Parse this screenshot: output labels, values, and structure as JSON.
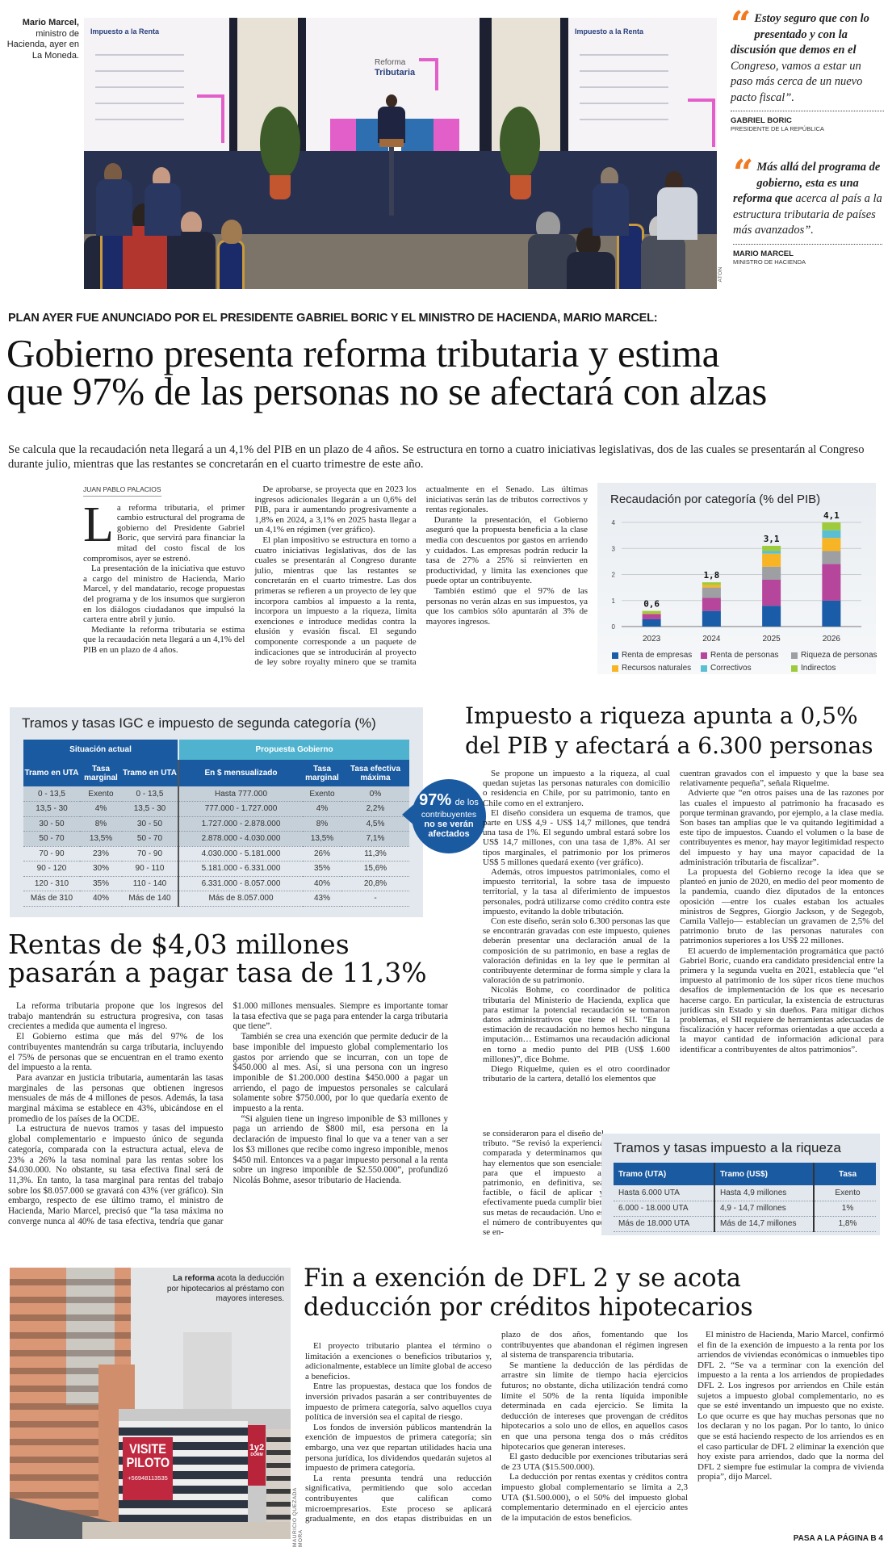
{
  "photo_top": {
    "caption_bold": "Mario Marcel,",
    "caption": "ministro de Hacienda, ayer en La Moneda.",
    "credit": "ATON",
    "screen_left_title": "Impuesto a la Renta",
    "screen_center_title": "Reforma",
    "screen_center_title2": "Tributaria",
    "screen_right_title": "Impuesto a la Renta"
  },
  "quotes": [
    {
      "bold": "Estoy seguro que con lo presentado y con la discusión que demos en el",
      "rest": " Congreso, vamos a estar un paso más cerca de un nuevo pacto fiscal”.",
      "name": "GABRIEL BORIC",
      "role": "PRESIDENTE DE LA REPÚBLICA"
    },
    {
      "bold": "Más allá del programa de gobierno, esta es una reforma que",
      "rest": " acerca al país a la estructura tributaria de países más avanzados”.",
      "name": "MARIO MARCEL",
      "role": "MINISTRO DE HACIENDA"
    }
  ],
  "colors": {
    "accent_orange": "#f07a22",
    "table_blue": "#1a5aa0",
    "table_teal": "#4fb3cf"
  },
  "main_article": {
    "kicker": "PLAN AYER FUE ANUNCIADO POR EL PRESIDENTE GABRIEL BORIC Y EL MINISTRO DE HACIENDA, MARIO MARCEL:",
    "headline_line1": "Gobierno presenta reforma tributaria y estima",
    "headline_line2": "que 97% de las personas no se afectará con alzas",
    "deck": "Se calcula que la recaudación neta llegará a un 4,1% del PIB en un plazo de 4 años. Se estructura en torno a cuatro iniciativas legislativas, dos de las cuales se presentarán al Congreso durante julio, mientras que las restantes se concretarán en el cuarto trimestre de este año.",
    "byline": "JUAN PABLO PALACIOS",
    "drop_cap": "L",
    "first_paragraph": "a reforma tributaria, el primer cambio estructural del programa de gobierno del Presidente Gabriel Boric, que servirá para financiar la mitad del costo fiscal de los compromisos, ayer se estrenó.",
    "paragraphs": [
      "La presentación de la iniciativa que estuvo a cargo del ministro de Hacienda, Mario Marcel, y del mandatario, recoge propuestas del programa y de los insumos que surgieron en los diálogos ciudadanos que impulsó la cartera entre abril y junio.",
      "Mediante la reforma tributaria se estima que la recaudación neta llegará a un 4,1% del PIB en un plazo de 4 años.",
      "De aprobarse, se proyecta que en 2023 los ingresos adicionales llegarán a un 0,6% del PIB, para ir aumentando progresivamente a 1,8% en 2024, a 3,1% en 2025 hasta llegar a un 4,1% en régimen (ver gráfico).",
      "El plan impositivo se estructura en torno a cuatro iniciativas legislativas, dos de las cuales se presentarán al Congreso durante julio, mientras que las restantes se concretarán en el cuarto trimestre. Las dos primeras se refieren a un proyecto de ley que incorpora cambios al impuesto a la renta, incorpora un impuesto a la riqueza, limita exenciones e introduce medidas contra la elusión y evasión fiscal. El segundo componente corresponde a un paquete de indicaciones que se introducirán al proyecto de ley sobre royalty minero que se tramita actualmente en el Senado. Las últimas iniciativas serán las de tributos correctivos y rentas regionales.",
      "Durante la presentación, el Gobierno aseguró que la propuesta beneficia a la clase media con descuentos por gastos en arriendo y cuidados. Las empresas podrán reducir la tasa de 27% a 25% si reinvierten en productividad, y limita las exenciones que puede optar un contribuyente.",
      "También estimó que el 97% de las personas no verán alzas en sus impuestos, ya que los cambios sólo apuntarán al 3% de mayores ingresos."
    ]
  },
  "chart_data": {
    "type": "bar",
    "stacked": true,
    "title": "Recaudación por categoría (% del PIB)",
    "categories": [
      "2023",
      "2024",
      "2025",
      "2026"
    ],
    "totals_labels": [
      "0,6",
      "1,8",
      "3,1",
      "4,1"
    ],
    "ylim": [
      0,
      4
    ],
    "yticks": [
      "0",
      "1",
      "2",
      "3",
      "4"
    ],
    "grid": true,
    "legend_position": "bottom",
    "series": [
      {
        "name": "Renta de empresas",
        "color": "#1a5ca8",
        "values": [
          0.28,
          0.6,
          0.8,
          1.0
        ]
      },
      {
        "name": "Renta de personas",
        "color": "#b5469b",
        "values": [
          0.2,
          0.5,
          1.0,
          1.4
        ]
      },
      {
        "name": "Riqueza de personas",
        "color": "#9d9fa2",
        "values": [
          0.0,
          0.4,
          0.5,
          0.5
        ]
      },
      {
        "name": "Recursos naturales",
        "color": "#f7b526",
        "values": [
          0.02,
          0.1,
          0.5,
          0.5
        ]
      },
      {
        "name": "Correctivos",
        "color": "#5bbfd3",
        "values": [
          0.0,
          0.0,
          0.1,
          0.3
        ]
      },
      {
        "name": "Indirectos",
        "color": "#9ecb3c",
        "values": [
          0.1,
          0.1,
          0.2,
          0.3
        ]
      }
    ]
  },
  "igc_table": {
    "title": "Tramos y tasas IGC e impuesto de segunda categoría (%)",
    "group_current": "Situación actual",
    "group_proposal": "Propuesta Gobierno",
    "columns": [
      "Tramo en UTA",
      "Tasa marginal",
      "Tramo en UTA",
      "En $ mensualizado",
      "Tasa marginal",
      "Tasa efectiva máxima"
    ],
    "rows": [
      [
        "0 - 13,5",
        "Exento",
        "0 - 13,5",
        "Hasta 777.000",
        "Exento",
        "0%"
      ],
      [
        "13,5 - 30",
        "4%",
        "13,5 - 30",
        "777.000 - 1.727.000",
        "4%",
        "2,2%"
      ],
      [
        "30 - 50",
        "8%",
        "30 - 50",
        "1.727.000 - 2.878.000",
        "8%",
        "4,5%"
      ],
      [
        "50 - 70",
        "13,5%",
        "50 - 70",
        "2.878.000 - 4.030.000",
        "13,5%",
        "7,1%"
      ],
      [
        "70 - 90",
        "23%",
        "70 - 90",
        "4.030.000 - 5.181.000",
        "26%",
        "11,3%"
      ],
      [
        "90 - 120",
        "30%",
        "90 - 110",
        "5.181.000 - 6.331.000",
        "35%",
        "15,6%"
      ],
      [
        "120 - 310",
        "35%",
        "110 - 140",
        "6.331.000 - 8.057.000",
        "40%",
        "20,8%"
      ],
      [
        "Más de 310",
        "40%",
        "Más de 140",
        "Más de 8.057.000",
        "43%",
        "-"
      ]
    ],
    "bubble_big": "97%",
    "bubble_small": "de los",
    "bubble_line2": "contribuyentes",
    "bubble_line3": "no se verán",
    "bubble_line4": "afectados"
  },
  "rentas_article": {
    "headline_line1": "Rentas de $4,03 millones",
    "headline_line2": "pasarán a pagar tasa de 11,3%",
    "paragraphs": [
      "La reforma tributaria propone que los ingresos del trabajo mantendrán su estructura progresiva, con tasas crecientes a medida que aumenta el ingreso.",
      "El Gobierno estima que más del 97% de los contribuyentes mantendrán su carga tributaria, incluyendo el 75% de personas que se encuentran en el tramo exento del impuesto a la renta.",
      "Para avanzar en justicia tributaria, aumentarán las tasas marginales de las personas que obtienen ingresos mensuales de más de 4 millones de pesos. Además, la tasa marginal máxima se establece en 43%, ubicándose en el promedio de los países de la OCDE.",
      "La estructura de nuevos tramos y tasas del impuesto global complementario e impuesto único de segunda categoría, comparada con la estructura actual, eleva de 23% a 26% la tasa nominal para las rentas sobre los $4.030.000. No obstante, su tasa efectiva final será de 11,3%. En tanto, la tasa marginal para rentas del trabajo sobre los $8.057.000 se gravará con 43% (ver gráfico). Sin embargo, respecto de ese último tramo, el ministro de Hacienda, Mario Marcel, precisó que “la tasa máxima no converge nunca al 40% de tasa efectiva, tendría que ganar $1.000 millones mensuales. Siempre es importante tomar la tasa efectiva que se paga para entender la carga tributaria que tiene”.",
      "También se crea una exención que permite deducir de la base imponible del impuesto global complementario los gastos por arriendo que se incurran, con un tope de $450.000 al mes. Así, si una persona con un ingreso imponible de $1.200.000 destina $450.000 a pagar un arriendo, el pago de impuestos personales se calculará solamente sobre $750.000, por lo que quedaría exento de impuesto a la renta.",
      "“Si alguien tiene un ingreso imponible de $3 millones y paga un arriendo de $800 mil, esa persona en la declaración de impuesto final lo que va a tener van a ser los $3 millones que recibe como ingreso imponible, menos $450 mil. Entonces va a pagar impuesto personal a la renta sobre un ingreso imponible de $2.550.000”, profundizó Nicolás Bohme, asesor tributario de Hacienda."
    ]
  },
  "riqueza_article": {
    "headline_line1": "Impuesto a riqueza apunta a 0,5%",
    "headline_line2": "del PIB y afectará a 6.300 personas",
    "col1_paragraphs": [
      "Se propone un impuesto a la riqueza, al cual quedan sujetas las personas naturales con domicilio o residencia en Chile, por su patrimonio, tanto en Chile como en el extranjero.",
      "El diseño considera un esquema de tramos, que parte en US$ 4,9 - US$ 14,7 millones, que tendrá una tasa de 1%. El segundo umbral estará sobre los US$ 14,7 millones, con una tasa de 1,8%. Al ser tipos marginales, el patrimonio por los primeros US$ 5 millones quedará exento (ver gráfico).",
      "Además, otros impuestos patrimoniales, como el impuesto territorial, la sobre tasa de impuesto territorial, y la tasa al diferimiento de impuestos personales, podrá utilizarse como crédito contra este impuesto, evitando la doble tributación.",
      "Con este diseño, serán solo 6.300 personas las que se encontrarán gravadas con este impuesto, quienes deberán presentar una declaración anual de la composición de su patrimonio, en base a reglas de valoración definidas en la ley que le permitan al contribuyente determinar de forma simple y clara la valoración de su patrimonio.",
      "Nicolás Bohme, co coordinador de política tributaria del Ministerio de Hacienda, explica que para estimar la potencial recaudación se tomaron datos administrativos que tiene el SII. “En la estimación de recaudación no hemos hecho ninguna imputación… Estimamos una recaudación adicional en torno a medio punto del PIB (US$ 1.600 millones)”, dice Bohme.",
      "Diego Riquelme, quien es el otro coordinador tributario de la cartera, detalló los elementos que"
    ],
    "col1_narrow_text": "se consideraron para el diseño del tributo. “Se revisó la experiencia comparada y determinamos que hay elementos que son esenciales para que el impuesto al patrimonio, en definitiva, sea factible, o fácil de aplicar y efectivamente pueda cumplir bien sus metas de recaudación. Uno es el número de contribuyentes que se en-",
    "col2_continuation": "cuentran gravados con el impuesto y que la base sea relativamente pequeña”, señala Riquelme.",
    "col2_paragraphs": [
      "Advierte que “en otros países una de las razones por las cuales el impuesto al patrimonio ha fracasado es porque terminan gravando, por ejemplo, a la clase media. Son bases tan amplias que le va quitando legitimidad a este tipo de impuestos. Cuando el volumen o la base de contribuyentes es menor, hay mayor legitimidad respecto del impuesto y hay una mayor capacidad de la administración tributaria de fiscalizar”.",
      "La propuesta del Gobierno recoge la idea que se planteó en junio de 2020, en medio del peor momento de la pandemia, cuando diez diputados de la entonces oposición —entre los cuales estaban los actuales ministros de Segpres, Giorgio Jackson, y de Segegob, Camila Vallejo— establecían un gravamen de 2,5% del patrimonio bruto de las personas naturales con patrimonios superiores a los US$ 22 millones.",
      "El acuerdo de implementación programática que pactó Gabriel Boric, cuando era candidato presidencial entre la primera y la segunda vuelta en 2021, establecía que “el impuesto al patrimonio de los súper ricos tiene muchos desafíos de implementación de los que es necesario hacerse cargo. En particular, la existencia de estructuras jurídicas sin Estado y sin dueños. Para mitigar dichos problemas, el SII requiere de herramientas adecuadas de fiscalización y hacer reformas orientadas a que acceda a la mayor cantidad de información adicional para identificar a contribuyentes de altos patrimonios”."
    ]
  },
  "riqueza_table": {
    "title": "Tramos y tasas impuesto a la riqueza",
    "columns": [
      "Tramo (UTA)",
      "Tramo (US$)",
      "Tasa"
    ],
    "rows": [
      [
        "Hasta 6.000 UTA",
        "Hasta 4,9 millones",
        "Exento"
      ],
      [
        "6.000 - 18.000 UTA",
        "4,9 - 14,7 millones",
        "1%"
      ],
      [
        "Más de 18.000 UTA",
        "Más de 14,7 millones",
        "1,8%"
      ]
    ]
  },
  "photo_bottom": {
    "caption_bold": "La reforma",
    "caption": " acota la deducción por hipotecarios al préstamo con mayores intereses.",
    "sign_line1": "VISITE",
    "sign_line2": "PILOTO",
    "sign_phone": "+56948113535",
    "banner": "1y2",
    "banner_small": "DORM",
    "credit": "MAURICIO QUEZADA MORA"
  },
  "dfl_article": {
    "headline_line1": "Fin a exención de DFL 2 y se acota",
    "headline_line2": "deducción por créditos hipotecarios",
    "paragraphs": [
      "El proyecto tributario plantea el término o limitación a exenciones o beneficios tributarios y, adicionalmente, establece un límite global de acceso a beneficios.",
      "Entre las propuestas, destaca que los fondos de inversión privados pasarán a ser contribuyentes de impuesto de primera categoría, salvo aquellos cuya política de inversión sea el capital de riesgo.",
      "Los fondos de inversión públicos mantendrán la exención de impuestos de primera categoría; sin embargo, una vez que repartan utilidades hacia una persona jurídica, los dividendos quedarán sujetos al impuesto de primera categoría.",
      "La renta presunta tendrá una reducción significativa, permitiendo que solo accedan contribuyentes que califican como microempresarios. Este proceso se aplicará gradualmente, en dos etapas distribuidas en un plazo de dos años, fomentando que los contribuyentes que abandonan el régimen ingresen al sistema de transparencia tributaria.",
      "Se mantiene la deducción de las pérdidas de arrastre sin límite de tiempo hacia ejercicios futuros; no obstante, dicha utilización tendrá como límite el 50% de la renta líquida imponible determinada en cada ejercicio. Se limita la deducción de intereses que provengan de créditos hipotecarios a solo uno de ellos, en aquellos casos en que una persona tenga dos o más créditos hipotecarios que generan intereses.",
      "El gasto deducible por exenciones tributarias será de 23 UTA ($15.500.000).",
      "La deducción por rentas exentas y créditos contra impuesto global complementario se limita a 2,3 UTA ($1.500.000), o el 50% del impuesto global complementario determinado en el ejercicio antes de la imputación de estos beneficios.",
      "El ministro de Hacienda, Mario Marcel, confirmó el fin de la exención de impuesto a la renta por los arriendos de viviendas económicas o inmuebles tipo DFL 2. “Se va a terminar con la exención del impuesto a la renta a los arriendos de propiedades DFL 2. Los ingresos por arriendos en Chile están sujetos a impuesto global complementario, no es que se esté inventando un impuesto que no existe. Lo que ocurre es que hay muchas personas que no los declaran y no los pagan. Por lo tanto, lo único que se está haciendo respecto de los arriendos es en el caso particular de DFL 2 eliminar la exención que hoy existe para arriendos, dado que la norma del DFL 2 siempre fue estimular la compra de vivienda propia”, dijo Marcel."
    ],
    "continued": "PASA A LA PÁGINA B 4"
  }
}
